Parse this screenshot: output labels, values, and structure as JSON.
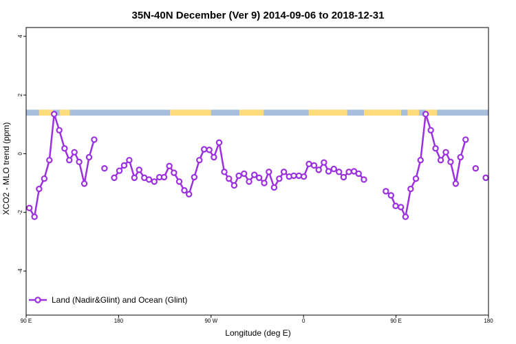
{
  "chart_data": {
    "type": "line",
    "title": "35N-40N December (Ver 9)   2014-09-06 to 2018-12-31",
    "xlabel": "Longitude (deg E)",
    "ylabel": "XCO2 - MLO trend (ppm)",
    "xlim": [
      90,
      450
    ],
    "ylim": [
      -5.5,
      4.3
    ],
    "x_ticks": [
      {
        "value": 90,
        "label": "90 E"
      },
      {
        "value": 162,
        "label": "180"
      },
      {
        "value": 234,
        "label": "90 W"
      },
      {
        "value": 306,
        "label": "0"
      },
      {
        "value": 378,
        "label": "90 E"
      },
      {
        "value": 450,
        "label": "180"
      }
    ],
    "y_ticks": [
      {
        "value": 4,
        "label": "4"
      },
      {
        "value": 2,
        "label": "2"
      },
      {
        "value": 0,
        "label": "0"
      },
      {
        "value": -2,
        "label": "-2"
      },
      {
        "value": -4,
        "label": "-4"
      }
    ],
    "series": [
      {
        "name": "Land (Nadir&Glint) and Ocean (Glint)",
        "color": "#9b30e0",
        "x": [
          92.5,
          96.5,
          100.1,
          104.1,
          108.1,
          111.8,
          115.8,
          119.9,
          123.6,
          127.6,
          131.3,
          135.3,
          139.0,
          143.0,
          151.0,
          158.6,
          162.6,
          166.3,
          170.3,
          174.3,
          178.0,
          182.0,
          185.7,
          189.8,
          193.8,
          197.4,
          201.5,
          205.1,
          209.2,
          213.2,
          216.8,
          220.9,
          224.9,
          228.6,
          232.6,
          236.2,
          240.3,
          244.3,
          247.9,
          252.0,
          255.6,
          259.7,
          263.6,
          267.7,
          271.4,
          275.4,
          279.0,
          283.1,
          287.1,
          290.7,
          294.8,
          298.4,
          302.4,
          306.2,
          310.2,
          314.2,
          317.8,
          321.9,
          325.5,
          329.6,
          333.6,
          337.2,
          341.3,
          345.3,
          348.9,
          353.0,
          356.6,
          370.1,
          374.1,
          377.7,
          381.8,
          385.4,
          389.4,
          393.5,
          397.1,
          401.1,
          405.1,
          408.8,
          412.8,
          416.8,
          420.5,
          424.5,
          428.2,
          432.2,
          440.0,
          447.9
        ],
        "segments": [
          [
            0,
            13
          ],
          [
            14,
            14
          ],
          [
            15,
            66
          ],
          [
            67,
            83
          ],
          [
            84,
            84
          ],
          [
            85,
            85
          ]
        ],
        "y": [
          -1.85,
          -2.15,
          -1.2,
          -0.85,
          -0.22,
          1.35,
          0.8,
          0.18,
          -0.22,
          0.05,
          -0.28,
          -1.02,
          -0.12,
          0.48,
          -0.5,
          -0.82,
          -0.58,
          -0.4,
          -0.22,
          -0.82,
          -0.55,
          -0.82,
          -0.88,
          -0.95,
          -0.8,
          -0.8,
          -0.42,
          -0.65,
          -0.95,
          -1.25,
          -1.38,
          -0.8,
          -0.22,
          0.15,
          0.13,
          -0.12,
          0.38,
          -0.62,
          -0.85,
          -1.08,
          -0.75,
          -0.68,
          -0.95,
          -0.72,
          -0.82,
          -1.0,
          -0.62,
          -1.15,
          -0.85,
          -0.62,
          -0.78,
          -0.75,
          -0.75,
          -0.78,
          -0.35,
          -0.4,
          -0.55,
          -0.3,
          -0.6,
          -0.52,
          -0.62,
          -0.8,
          -0.62,
          -0.6,
          -0.68,
          -0.88,
          null,
          -1.28,
          -1.42,
          -1.78,
          -1.82,
          -2.15,
          -1.2,
          -0.85,
          -0.22,
          1.35,
          0.8,
          0.18,
          -0.22,
          0.05,
          -0.28,
          -1.02,
          -0.12,
          0.48,
          -0.5,
          -0.82
        ]
      }
    ],
    "surface_band": {
      "y_range": [
        1.3,
        1.5
      ],
      "ocean_color": "#a6bddb",
      "land_color": "#fddc7a",
      "land_segments": [
        [
          100,
          111
        ],
        [
          116,
          124
        ],
        [
          202,
          234
        ],
        [
          256,
          275
        ],
        [
          310,
          340
        ],
        [
          353,
          382
        ],
        [
          387,
          396
        ],
        [
          401,
          410
        ]
      ]
    },
    "legend": {
      "position": "bottom-left",
      "label": "Land (Nadir&Glint) and Ocean (Glint)"
    },
    "grid": false
  }
}
